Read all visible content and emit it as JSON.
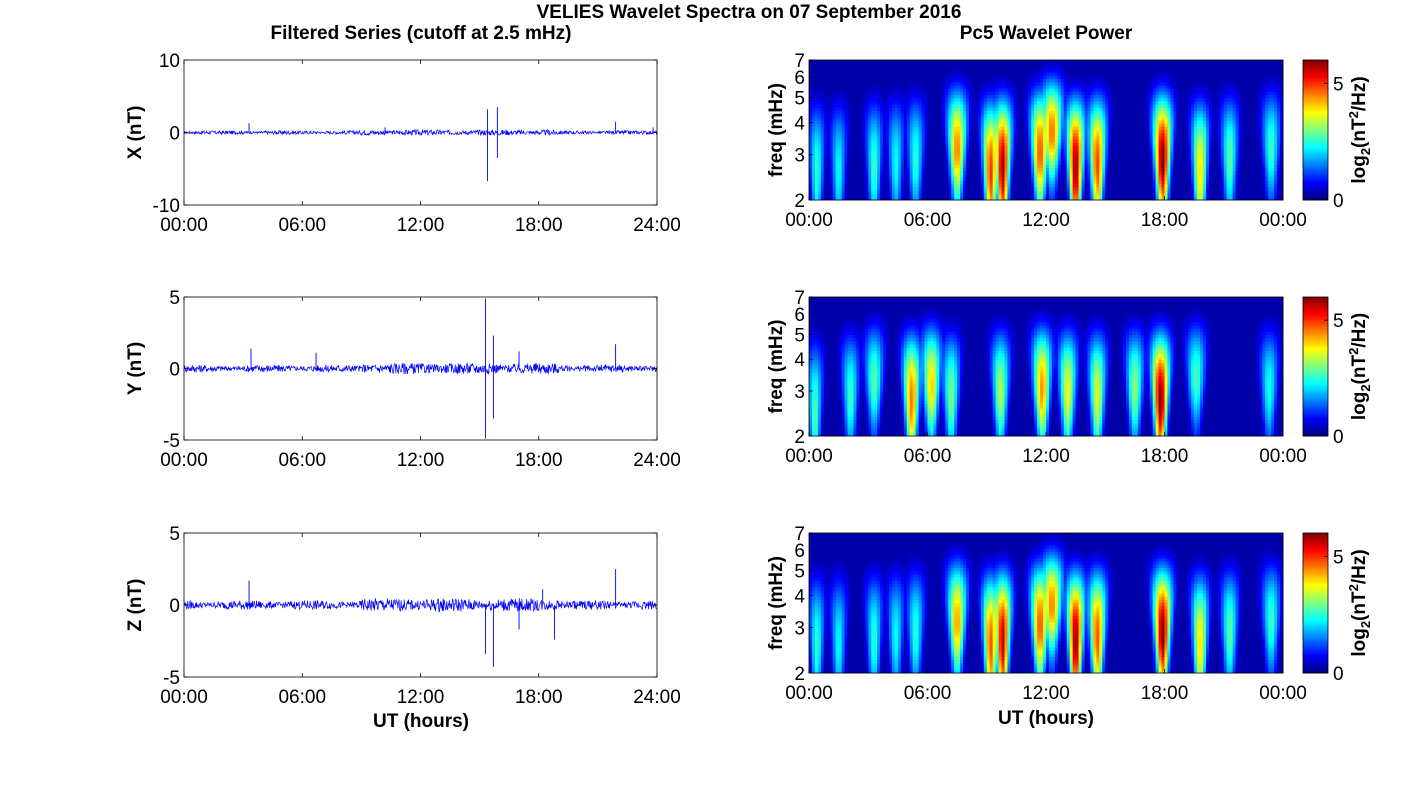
{
  "figure": {
    "title": "VELIES Wavelet Spectra on 07 September 2016",
    "left_title": "Filtered Series (cutoff at 2.5 mHz)",
    "right_title": "Pc5 Wavelet Power",
    "xlabel": "UT (hours)"
  },
  "chart_data": [
    {
      "type": "line",
      "component": "X",
      "ylabel": "X (nT)",
      "xlim": [
        0,
        24
      ],
      "ylim": [
        -10,
        10
      ],
      "xticks": [
        "00:00",
        "06:00",
        "12:00",
        "18:00",
        "24:00"
      ],
      "yticks": [
        "10",
        "0",
        "-10"
      ],
      "noise_amplitude": 0.25,
      "spikes": [
        {
          "t": 3.3,
          "v": 1.3
        },
        {
          "t": 10.2,
          "v": 0.7
        },
        {
          "t": 15.4,
          "v": -6.7
        },
        {
          "t": 15.4,
          "v": 3.2
        },
        {
          "t": 15.9,
          "v": 3.5
        },
        {
          "t": 15.9,
          "v": -3.5
        },
        {
          "t": 21.9,
          "v": 1.5
        },
        {
          "t": 23.8,
          "v": 0.7
        }
      ],
      "line_color": "#0000ff"
    },
    {
      "type": "line",
      "component": "Y",
      "ylabel": "Y (nT)",
      "xlim": [
        0,
        24
      ],
      "ylim": [
        -5,
        5
      ],
      "xticks": [
        "00:00",
        "06:00",
        "12:00",
        "18:00",
        "24:00"
      ],
      "yticks": [
        "5",
        "0",
        "-5"
      ],
      "noise_amplitude": 0.25,
      "spikes": [
        {
          "t": 3.4,
          "v": 1.4
        },
        {
          "t": 6.7,
          "v": 1.1
        },
        {
          "t": 15.3,
          "v": -4.9
        },
        {
          "t": 15.3,
          "v": 4.9
        },
        {
          "t": 15.7,
          "v": 2.3
        },
        {
          "t": 15.7,
          "v": -3.5
        },
        {
          "t": 17.0,
          "v": 1.2
        },
        {
          "t": 21.9,
          "v": 1.7
        }
      ],
      "line_color": "#0000ff"
    },
    {
      "type": "line",
      "component": "Z",
      "ylabel": "Z (nT)",
      "xlim": [
        0,
        24
      ],
      "ylim": [
        -5,
        5
      ],
      "xticks": [
        "00:00",
        "06:00",
        "12:00",
        "18:00",
        "24:00"
      ],
      "yticks": [
        "5",
        "0",
        "-5"
      ],
      "noise_amplitude": 0.3,
      "spikes": [
        {
          "t": 3.3,
          "v": 1.7
        },
        {
          "t": 15.3,
          "v": -3.4
        },
        {
          "t": 15.7,
          "v": -4.3
        },
        {
          "t": 17.0,
          "v": -1.7
        },
        {
          "t": 18.2,
          "v": 1.1
        },
        {
          "t": 18.8,
          "v": -2.4
        },
        {
          "t": 21.9,
          "v": 2.5
        }
      ],
      "line_color": "#0000ff"
    },
    {
      "type": "heatmap",
      "component": "X",
      "ylabel": "freq (mHz)",
      "colorbar_label": "log2(nT2/Hz)",
      "xticks": [
        "00:00",
        "06:00",
        "12:00",
        "18:00",
        "00:00"
      ],
      "yticks": [
        "2",
        "3",
        "4",
        "5",
        "6",
        "7"
      ],
      "color_range": [
        0,
        6
      ],
      "colorbar_ticks": [
        "5",
        "0"
      ],
      "bursts": [
        {
          "t": 0.4,
          "f": 2.5,
          "p": 2.5
        },
        {
          "t": 1.5,
          "f": 2.5,
          "p": 2.3
        },
        {
          "t": 3.3,
          "f": 2.6,
          "p": 2.6
        },
        {
          "t": 4.4,
          "f": 2.7,
          "p": 2.3
        },
        {
          "t": 5.4,
          "f": 2.8,
          "p": 2.5
        },
        {
          "t": 7.5,
          "f": 3.1,
          "p": 4.5
        },
        {
          "t": 9.2,
          "f": 2.5,
          "p": 5.0
        },
        {
          "t": 9.8,
          "f": 2.6,
          "p": 5.8
        },
        {
          "t": 11.7,
          "f": 3.0,
          "p": 4.8
        },
        {
          "t": 12.3,
          "f": 3.6,
          "p": 4.6
        },
        {
          "t": 13.5,
          "f": 2.6,
          "p": 5.9
        },
        {
          "t": 14.6,
          "f": 2.7,
          "p": 4.9
        },
        {
          "t": 17.9,
          "f": 2.8,
          "p": 6.0
        },
        {
          "t": 19.8,
          "f": 2.5,
          "p": 4.0
        },
        {
          "t": 21.3,
          "f": 2.8,
          "p": 2.8
        },
        {
          "t": 23.4,
          "f": 3.1,
          "p": 2.6
        }
      ]
    },
    {
      "type": "heatmap",
      "component": "Y",
      "ylabel": "freq (mHz)",
      "colorbar_label": "log2(nT2/Hz)",
      "xticks": [
        "00:00",
        "06:00",
        "12:00",
        "18:00",
        "00:00"
      ],
      "yticks": [
        "2",
        "3",
        "4",
        "5",
        "6",
        "7"
      ],
      "color_range": [
        0,
        6
      ],
      "colorbar_ticks": [
        "5",
        "0"
      ],
      "bursts": [
        {
          "t": 0.3,
          "f": 2.4,
          "p": 2.7
        },
        {
          "t": 2.1,
          "f": 2.8,
          "p": 2.6
        },
        {
          "t": 3.3,
          "f": 3.2,
          "p": 2.8
        },
        {
          "t": 5.2,
          "f": 2.7,
          "p": 4.6
        },
        {
          "t": 6.2,
          "f": 3.1,
          "p": 4.0
        },
        {
          "t": 7.2,
          "f": 2.8,
          "p": 3.0
        },
        {
          "t": 9.7,
          "f": 2.9,
          "p": 3.3
        },
        {
          "t": 11.8,
          "f": 3.0,
          "p": 4.4
        },
        {
          "t": 13.1,
          "f": 2.9,
          "p": 3.7
        },
        {
          "t": 14.6,
          "f": 2.8,
          "p": 3.6
        },
        {
          "t": 16.5,
          "f": 3.0,
          "p": 3.1
        },
        {
          "t": 17.8,
          "f": 2.7,
          "p": 6.0
        },
        {
          "t": 19.6,
          "f": 3.3,
          "p": 2.7
        },
        {
          "t": 23.3,
          "f": 3.0,
          "p": 2.4
        }
      ]
    },
    {
      "type": "heatmap",
      "component": "Z",
      "ylabel": "freq (mHz)",
      "colorbar_label": "log2(nT2/Hz)",
      "xticks": [
        "00:00",
        "06:00",
        "12:00",
        "18:00",
        "00:00"
      ],
      "yticks": [
        "2",
        "3",
        "4",
        "5",
        "6",
        "7"
      ],
      "color_range": [
        0,
        6
      ],
      "colorbar_ticks": [
        "5",
        "0"
      ],
      "bursts": [
        {
          "t": 0.4,
          "f": 2.5,
          "p": 2.5
        },
        {
          "t": 1.5,
          "f": 2.5,
          "p": 2.3
        },
        {
          "t": 3.3,
          "f": 2.6,
          "p": 2.5
        },
        {
          "t": 4.4,
          "f": 2.7,
          "p": 2.3
        },
        {
          "t": 5.4,
          "f": 2.8,
          "p": 2.5
        },
        {
          "t": 7.5,
          "f": 3.1,
          "p": 4.3
        },
        {
          "t": 9.2,
          "f": 2.5,
          "p": 4.8
        },
        {
          "t": 9.8,
          "f": 2.6,
          "p": 5.6
        },
        {
          "t": 11.7,
          "f": 3.0,
          "p": 4.8
        },
        {
          "t": 12.3,
          "f": 3.6,
          "p": 4.5
        },
        {
          "t": 13.5,
          "f": 2.6,
          "p": 5.9
        },
        {
          "t": 14.6,
          "f": 2.7,
          "p": 4.8
        },
        {
          "t": 17.9,
          "f": 2.8,
          "p": 6.0
        },
        {
          "t": 19.8,
          "f": 2.5,
          "p": 4.0
        },
        {
          "t": 21.3,
          "f": 2.8,
          "p": 2.8
        },
        {
          "t": 23.4,
          "f": 3.1,
          "p": 2.6
        }
      ]
    }
  ]
}
